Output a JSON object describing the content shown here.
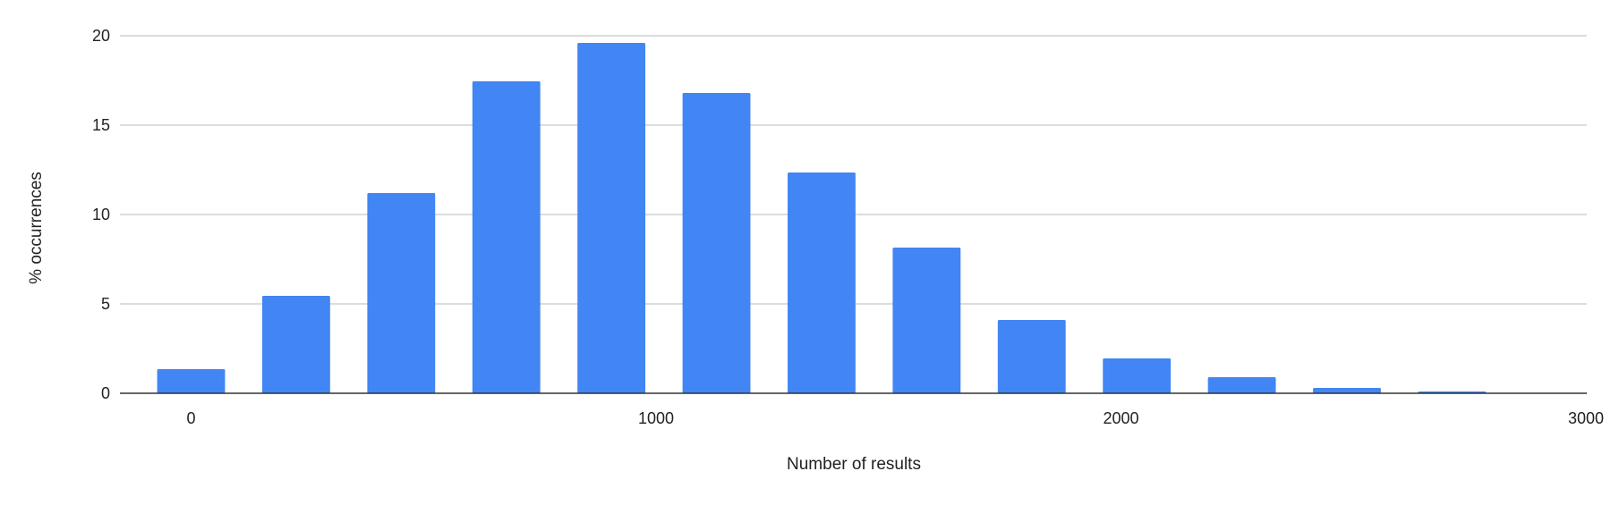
{
  "chart_data": {
    "type": "bar",
    "title": "",
    "xlabel": "Number of results",
    "ylabel": "% occurrences",
    "x": [
      0,
      226,
      452,
      678,
      904,
      1130,
      1356,
      1582,
      1808,
      2034,
      2260,
      2486,
      2712
    ],
    "values": [
      1.35,
      5.45,
      11.2,
      17.45,
      19.6,
      16.8,
      12.35,
      8.15,
      4.1,
      1.95,
      0.9,
      0.3,
      0.1
    ],
    "xlim": [
      -150,
      3000
    ],
    "ylim": [
      0,
      20
    ],
    "xticks": [
      "0",
      "1000",
      "2000",
      "3000"
    ],
    "yticks": [
      "0",
      "5",
      "10",
      "15",
      "20"
    ],
    "grid": true,
    "legend": "none",
    "bar_color": "#4285f4"
  }
}
